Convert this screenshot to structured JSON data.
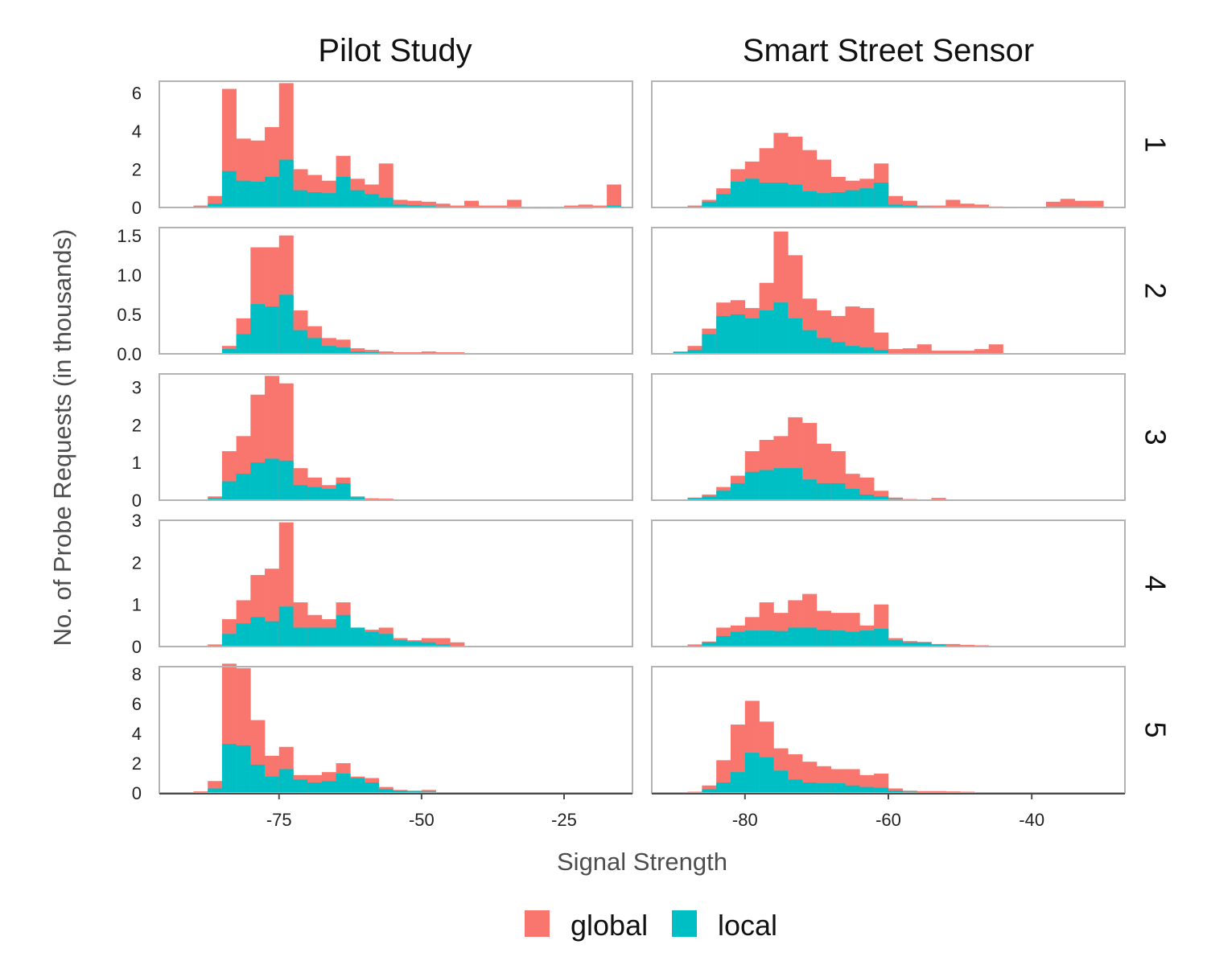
{
  "chart_data": {
    "type": "bar",
    "subtype": "faceted-stacked-histogram",
    "title": "",
    "xlabel": "Signal Strength",
    "ylabel": "No. of Probe Requests (in thousands)",
    "column_titles": [
      "Pilot Study",
      "Smart Street Sensor"
    ],
    "row_labels": [
      "1",
      "2",
      "3",
      "4",
      "5"
    ],
    "colors": {
      "global": "#F8766D",
      "local": "#00BFC4"
    },
    "legend": {
      "position": "bottom",
      "entries": [
        "global",
        "local"
      ]
    },
    "grid": false,
    "columns": [
      {
        "name": "Pilot Study",
        "xlim": [
          -96,
          -13
        ],
        "bin_start": -90,
        "bin_width": 2.5,
        "x_ticks": [
          -75,
          -50,
          -25
        ],
        "x_tick_labels": [
          "-75",
          "-50",
          "-25"
        ],
        "facets": [
          {
            "row": "1",
            "ylim": [
              0,
              6.6
            ],
            "y_ticks": [
              0,
              2,
              4,
              6
            ],
            "y_tick_labels": [
              "0",
              "2",
              "4",
              "6"
            ],
            "local": [
              0.05,
              0.2,
              1.9,
              1.4,
              1.35,
              1.6,
              2.5,
              0.9,
              0.8,
              0.75,
              1.6,
              0.9,
              0.7,
              0.5,
              0.15,
              0.12,
              0.08,
              0.05,
              0.03,
              0.03,
              0.02,
              0.02,
              0.01,
              0.01,
              0.01,
              0.01,
              0.01,
              0.01,
              0.02,
              0.1
            ],
            "global": [
              0.1,
              0.6,
              6.2,
              3.6,
              3.5,
              4.2,
              6.5,
              2.0,
              1.7,
              1.4,
              2.7,
              1.5,
              1.2,
              2.3,
              0.4,
              0.35,
              0.3,
              0.2,
              0.1,
              0.35,
              0.1,
              0.1,
              0.4,
              0.0,
              0.0,
              0.0,
              0.1,
              0.15,
              0.1,
              1.2
            ]
          },
          {
            "row": "2",
            "ylim": [
              0,
              1.6
            ],
            "y_ticks": [
              0,
              0.5,
              1.0,
              1.5
            ],
            "y_tick_labels": [
              "0.0",
              "0.5",
              "1.0",
              "1.5"
            ],
            "local": [
              0.0,
              0.0,
              0.06,
              0.25,
              0.63,
              0.6,
              0.75,
              0.3,
              0.2,
              0.1,
              0.08,
              0.03,
              0.02,
              0.01,
              0.01,
              0.01,
              0.01,
              0.01,
              0.0,
              0.0,
              0.0,
              0.0,
              0.0,
              0.0,
              0.0,
              0.0,
              0.0,
              0.0,
              0.0,
              0.0
            ],
            "global": [
              0.0,
              0.0,
              0.1,
              0.45,
              1.35,
              1.35,
              1.5,
              0.55,
              0.35,
              0.2,
              0.18,
              0.07,
              0.05,
              0.03,
              0.02,
              0.02,
              0.03,
              0.02,
              0.02,
              0.0,
              0.0,
              0.0,
              0.0,
              0.0,
              0.0,
              0.0,
              0.0,
              0.0,
              0.0,
              0.0
            ]
          },
          {
            "row": "3",
            "ylim": [
              0,
              3.35
            ],
            "y_ticks": [
              0,
              1,
              2,
              3
            ],
            "y_tick_labels": [
              "0",
              "1",
              "2",
              "3"
            ],
            "local": [
              0.0,
              0.05,
              0.5,
              0.7,
              1.0,
              1.1,
              1.05,
              0.4,
              0.35,
              0.3,
              0.45,
              0.08,
              0.02,
              0.0,
              0.0,
              0.0,
              0.0,
              0.0,
              0.0,
              0.0,
              0.0,
              0.0,
              0.0,
              0.0,
              0.0,
              0.0,
              0.0,
              0.0,
              0.0,
              0.0
            ],
            "global": [
              0.0,
              0.1,
              1.3,
              1.7,
              2.8,
              3.3,
              3.1,
              0.85,
              0.6,
              0.4,
              0.6,
              0.1,
              0.05,
              0.04,
              0.0,
              0.0,
              0.0,
              0.0,
              0.0,
              0.0,
              0.0,
              0.0,
              0.0,
              0.0,
              0.0,
              0.0,
              0.0,
              0.0,
              0.0,
              0.0
            ]
          },
          {
            "row": "4",
            "ylim": [
              0,
              3.0
            ],
            "y_ticks": [
              0,
              1,
              2,
              3
            ],
            "y_tick_labels": [
              "0",
              "1",
              "2",
              "3"
            ],
            "local": [
              0.0,
              0.0,
              0.3,
              0.55,
              0.7,
              0.6,
              0.95,
              0.45,
              0.45,
              0.45,
              0.75,
              0.45,
              0.35,
              0.3,
              0.15,
              0.12,
              0.1,
              0.05,
              0.02,
              0.0,
              0.0,
              0.0,
              0.0,
              0.0,
              0.0,
              0.0,
              0.0,
              0.0,
              0.0,
              0.0
            ],
            "global": [
              0.0,
              0.05,
              0.65,
              1.1,
              1.7,
              1.85,
              2.95,
              1.05,
              0.75,
              0.65,
              1.05,
              0.45,
              0.4,
              0.45,
              0.2,
              0.15,
              0.2,
              0.2,
              0.1,
              0.0,
              0.0,
              0.0,
              0.0,
              0.0,
              0.0,
              0.0,
              0.0,
              0.0,
              0.0,
              0.0
            ]
          },
          {
            "row": "5",
            "ylim": [
              0,
              8.5
            ],
            "y_ticks": [
              0,
              2,
              4,
              6,
              8
            ],
            "y_tick_labels": [
              "0",
              "2",
              "4",
              "6",
              "8"
            ],
            "local": [
              0.02,
              0.3,
              3.3,
              3.2,
              1.9,
              1.1,
              1.6,
              0.9,
              0.7,
              0.8,
              1.3,
              1.0,
              0.7,
              0.25,
              0.15,
              0.1,
              0.08,
              0.05,
              0.03,
              0.0,
              0.0,
              0.0,
              0.0,
              0.0,
              0.0,
              0.0,
              0.0,
              0.0,
              0.0,
              0.0
            ],
            "global": [
              0.1,
              0.8,
              8.7,
              8.4,
              4.9,
              2.5,
              3.1,
              1.2,
              1.2,
              1.4,
              2.0,
              1.1,
              1.0,
              0.4,
              0.2,
              0.15,
              0.2,
              0.05,
              0.05,
              0.0,
              0.0,
              0.0,
              0.0,
              0.0,
              0.0,
              0.0,
              0.0,
              0.0,
              0.0,
              0.0
            ]
          }
        ]
      },
      {
        "name": "Smart Street Sensor",
        "xlim": [
          -93,
          -27
        ],
        "bin_start": -92,
        "bin_width": 2,
        "x_ticks": [
          -80,
          -60,
          -40
        ],
        "x_tick_labels": [
          "-80",
          "-60",
          "-40"
        ],
        "facets": [
          {
            "row": "1",
            "ylim": [
              0,
              6.6
            ],
            "y_ticks": [
              0,
              2,
              4,
              6
            ],
            "y_tick_labels": [
              "0",
              "2",
              "4",
              "6"
            ],
            "local": [
              0.0,
              0.0,
              0.05,
              0.3,
              0.7,
              1.35,
              1.5,
              1.3,
              1.3,
              1.2,
              0.85,
              0.75,
              0.8,
              0.9,
              1.0,
              1.3,
              0.15,
              0.1,
              0.05,
              0.02,
              0.02,
              0.0,
              0.0,
              0.02,
              0.02,
              0.0,
              0.0,
              0.05,
              0.05,
              0.05,
              0.0,
              0.0
            ],
            "global": [
              0.0,
              0.0,
              0.1,
              0.4,
              1.0,
              2.0,
              2.4,
              3.1,
              3.9,
              3.7,
              3.0,
              2.5,
              1.6,
              1.4,
              1.5,
              2.3,
              0.6,
              0.35,
              0.1,
              0.1,
              0.4,
              0.2,
              0.15,
              0.05,
              0.0,
              0.0,
              0.0,
              0.3,
              0.45,
              0.35,
              0.35,
              0.0
            ]
          },
          {
            "row": "2",
            "ylim": [
              0,
              1.6
            ],
            "y_ticks": [
              0,
              0.5,
              1.0,
              1.5
            ],
            "y_tick_labels": [
              "0.0",
              "0.5",
              "1.0",
              "1.5"
            ],
            "local": [
              0.0,
              0.02,
              0.05,
              0.25,
              0.48,
              0.5,
              0.45,
              0.55,
              0.65,
              0.45,
              0.3,
              0.2,
              0.15,
              0.1,
              0.08,
              0.05,
              0.01,
              0.01,
              0.0,
              0.0,
              0.0,
              0.0,
              0.0,
              0.0,
              0.0,
              0.0,
              0.0,
              0.0,
              0.0,
              0.0,
              0.0,
              0.0
            ],
            "global": [
              0.0,
              0.03,
              0.1,
              0.32,
              0.65,
              0.68,
              0.58,
              0.9,
              1.55,
              1.25,
              0.7,
              0.55,
              0.48,
              0.6,
              0.58,
              0.27,
              0.06,
              0.07,
              0.12,
              0.04,
              0.04,
              0.04,
              0.06,
              0.12,
              0.0,
              0.0,
              0.0,
              0.0,
              0.0,
              0.0,
              0.0,
              0.0
            ]
          },
          {
            "row": "3",
            "ylim": [
              0,
              3.35
            ],
            "y_ticks": [
              0,
              1,
              2,
              3
            ],
            "y_tick_labels": [
              "0",
              "1",
              "2",
              "3"
            ],
            "local": [
              0.0,
              0.0,
              0.05,
              0.1,
              0.25,
              0.45,
              0.75,
              0.8,
              0.85,
              0.85,
              0.55,
              0.45,
              0.45,
              0.3,
              0.15,
              0.1,
              0.03,
              0.0,
              0.0,
              0.0,
              0.0,
              0.0,
              0.0,
              0.0,
              0.0,
              0.0,
              0.0,
              0.0,
              0.0,
              0.0,
              0.0,
              0.0
            ],
            "global": [
              0.0,
              0.0,
              0.07,
              0.15,
              0.35,
              0.65,
              1.3,
              1.6,
              1.7,
              2.2,
              2.05,
              1.5,
              1.3,
              0.7,
              0.6,
              0.25,
              0.07,
              0.03,
              0.0,
              0.06,
              0.0,
              0.0,
              0.0,
              0.0,
              0.0,
              0.0,
              0.0,
              0.0,
              0.0,
              0.0,
              0.0,
              0.0
            ]
          },
          {
            "row": "4",
            "ylim": [
              0,
              3.0
            ],
            "y_ticks": [
              0,
              1,
              2,
              3
            ],
            "y_tick_labels": [
              "0",
              "1",
              "2",
              "3"
            ],
            "local": [
              0.0,
              0.0,
              0.02,
              0.1,
              0.25,
              0.35,
              0.38,
              0.38,
              0.37,
              0.45,
              0.45,
              0.4,
              0.38,
              0.35,
              0.38,
              0.42,
              0.15,
              0.1,
              0.1,
              0.05,
              0.02,
              0.0,
              0.01,
              0.0,
              0.0,
              0.0,
              0.0,
              0.0,
              0.0,
              0.0,
              0.0,
              0.0
            ],
            "global": [
              0.0,
              0.0,
              0.05,
              0.12,
              0.45,
              0.5,
              0.7,
              1.05,
              0.8,
              1.1,
              1.25,
              0.85,
              0.8,
              0.8,
              0.5,
              1.0,
              0.2,
              0.13,
              0.11,
              0.06,
              0.06,
              0.04,
              0.03,
              0.0,
              0.0,
              0.0,
              0.0,
              0.0,
              0.0,
              0.0,
              0.0,
              0.0
            ]
          },
          {
            "row": "5",
            "ylim": [
              0,
              8.5
            ],
            "y_ticks": [
              0,
              2,
              4,
              6,
              8
            ],
            "y_tick_labels": [
              "0",
              "2",
              "4",
              "6",
              "8"
            ],
            "local": [
              0.0,
              0.0,
              0.05,
              0.25,
              0.7,
              1.4,
              2.7,
              2.4,
              1.5,
              0.9,
              0.7,
              0.65,
              0.65,
              0.5,
              0.4,
              0.35,
              0.15,
              0.08,
              0.05,
              0.05,
              0.03,
              0.02,
              0.0,
              0.0,
              0.0,
              0.0,
              0.0,
              0.0,
              0.0,
              0.0,
              0.0,
              0.0
            ],
            "global": [
              0.0,
              0.0,
              0.08,
              0.5,
              2.2,
              4.6,
              6.2,
              4.8,
              3.0,
              2.6,
              2.1,
              1.8,
              1.6,
              1.6,
              1.2,
              1.3,
              0.3,
              0.15,
              0.12,
              0.12,
              0.1,
              0.08,
              0.0,
              0.0,
              0.0,
              0.0,
              0.0,
              0.0,
              0.0,
              0.0,
              0.0,
              0.0
            ]
          }
        ]
      }
    ]
  }
}
